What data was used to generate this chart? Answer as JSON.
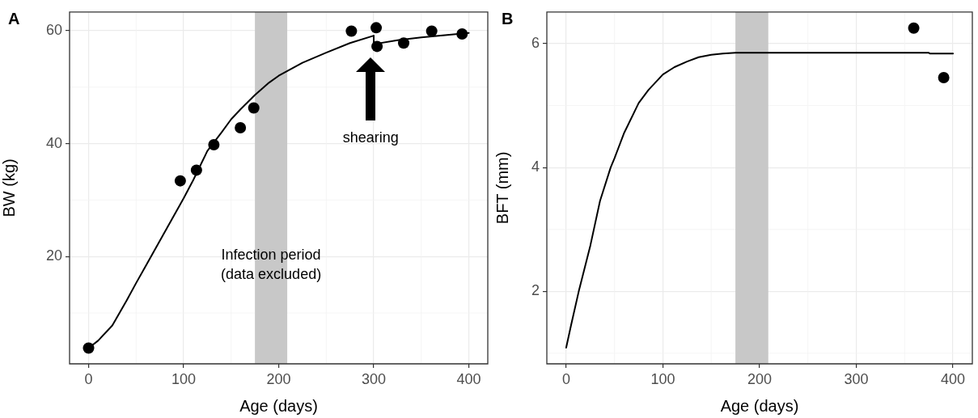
{
  "chart_data": [
    {
      "type": "scatter",
      "title": "A",
      "xlabel": "Age (days)",
      "ylabel": "BW (kg)",
      "xlim": [
        -20,
        420
      ],
      "xticks": [
        0,
        100,
        200,
        300,
        400
      ],
      "ylim": [
        1,
        63.3
      ],
      "yticks": [
        20,
        40,
        60
      ],
      "grid": true,
      "bands": [
        {
          "axis": "x",
          "from": 175,
          "to": 209,
          "label": "Infection period\n(data excluded)",
          "color": "#c8c8c8"
        }
      ],
      "annotations": [
        "shearing"
      ],
      "series": [
        {
          "type": "line",
          "color": "#000000",
          "line_style": "solid",
          "marker": "none",
          "x": [
            0,
            10,
            25,
            40,
            50,
            60,
            75,
            90,
            100,
            110,
            125,
            140,
            150,
            160,
            175,
            190,
            200,
            225,
            250,
            275,
            300,
            300,
            325,
            350,
            375,
            400
          ],
          "values": [
            3.8,
            5.1,
            7.8,
            12.2,
            15.3,
            18.3,
            22.8,
            27.3,
            30.3,
            33.5,
            38.7,
            42.0,
            44.3,
            46.1,
            48.6,
            50.8,
            52.0,
            54.3,
            56.1,
            57.8,
            59.1,
            57.6,
            58.3,
            58.8,
            59.2,
            59.6
          ]
        },
        {
          "type": "scatter",
          "color": "#000000",
          "marker": "circle",
          "x": [
            0,
            96.5,
            113.5,
            131.8,
            159.7,
            173.8,
            276.5,
            302.6,
            303.5,
            331.5,
            361,
            393
          ],
          "values": [
            3.8,
            33.4,
            35.3,
            39.8,
            42.8,
            46.3,
            59.9,
            60.5,
            57.2,
            57.8,
            59.9,
            59.4
          ]
        }
      ]
    },
    {
      "type": "scatter",
      "title": "B",
      "xlabel": "Age (days)",
      "ylabel": "BFT (mm)",
      "xlim": [
        -20,
        420
      ],
      "xticks": [
        0,
        100,
        200,
        300,
        400
      ],
      "ylim": [
        0.83,
        6.51
      ],
      "yticks": [
        2,
        4,
        6
      ],
      "grid": true,
      "bands": [
        {
          "axis": "x",
          "from": 175,
          "to": 209,
          "color": "#c8c8c8"
        }
      ],
      "series": [
        {
          "type": "line",
          "color": "#000000",
          "line_style": "solid",
          "marker": "none",
          "x": [
            0,
            5,
            13,
            25,
            35,
            46,
            50,
            60,
            75,
            85,
            100,
            112,
            125,
            137,
            150,
            162,
            175,
            200,
            300,
            375,
            376,
            400
          ],
          "values": [
            1.09,
            1.45,
            2.0,
            2.74,
            3.46,
            4.0,
            4.15,
            4.56,
            5.04,
            5.25,
            5.5,
            5.62,
            5.71,
            5.78,
            5.82,
            5.84,
            5.85,
            5.85,
            5.85,
            5.85,
            5.84,
            5.84
          ]
        },
        {
          "type": "scatter",
          "color": "#000000",
          "marker": "circle",
          "x": [
            359.4,
            390.4
          ],
          "values": [
            6.25,
            5.45
          ]
        }
      ]
    }
  ]
}
